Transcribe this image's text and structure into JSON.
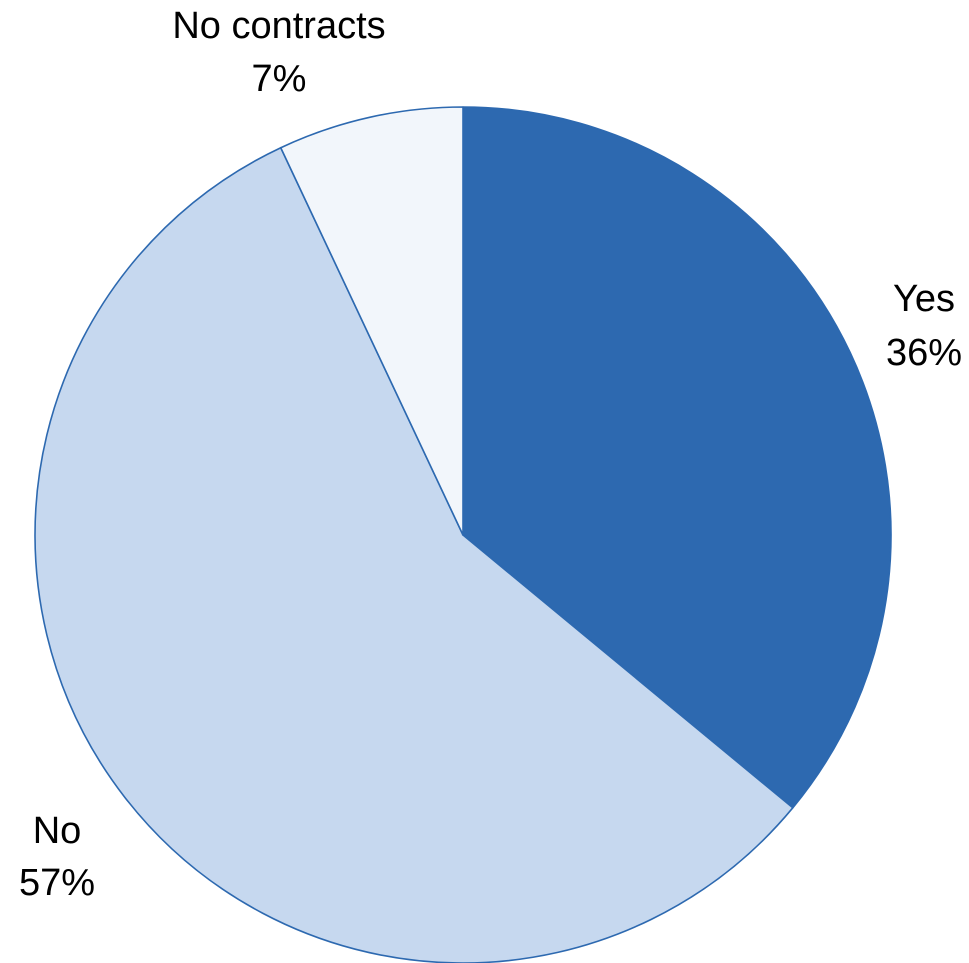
{
  "chart_data": {
    "type": "pie",
    "title": "",
    "slices": [
      {
        "category": "Yes",
        "value": 36,
        "value_label": "36%",
        "color": "#2D69B0"
      },
      {
        "category": "No",
        "value": 57,
        "value_label": "57%",
        "color": "#C6D8EF"
      },
      {
        "category": "No contracts",
        "value": 7,
        "value_label": "7%",
        "color": "#F2F6FB"
      }
    ],
    "start_angle": "12 o'clock",
    "direction": "clockwise",
    "slice_outline_color": "#2D69B0",
    "legend": "none",
    "labels": "outside"
  }
}
